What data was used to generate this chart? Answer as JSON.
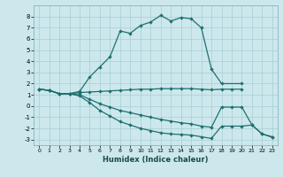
{
  "xlabel": "Humidex (Indice chaleur)",
  "bg_color": "#cce8ec",
  "grid_color": "#a8cdd4",
  "line_color": "#1e7070",
  "xlim": [
    -0.5,
    23.5
  ],
  "ylim": [
    -3.5,
    9.0
  ],
  "xticks": [
    0,
    1,
    2,
    3,
    4,
    5,
    6,
    7,
    8,
    9,
    10,
    11,
    12,
    13,
    14,
    15,
    16,
    17,
    18,
    19,
    20,
    21,
    22,
    23
  ],
  "yticks": [
    -3,
    -2,
    -1,
    0,
    1,
    2,
    3,
    4,
    5,
    6,
    7,
    8
  ],
  "line1_x": [
    0,
    1,
    2,
    3,
    4,
    5,
    6,
    7,
    8,
    9,
    10,
    11,
    12,
    13,
    14,
    15,
    16,
    17,
    18,
    20
  ],
  "line1_y": [
    1.5,
    1.4,
    1.1,
    1.1,
    1.3,
    2.6,
    3.5,
    4.4,
    6.7,
    6.5,
    7.2,
    7.5,
    8.1,
    7.6,
    7.9,
    7.8,
    7.0,
    3.3,
    2.0,
    2.0
  ],
  "line2_x": [
    0,
    1,
    2,
    3,
    4,
    5,
    6,
    7,
    8,
    9,
    10,
    11,
    12,
    13,
    14,
    15,
    16,
    17,
    18,
    19,
    20
  ],
  "line2_y": [
    1.5,
    1.4,
    1.1,
    1.1,
    1.2,
    1.25,
    1.3,
    1.35,
    1.4,
    1.45,
    1.5,
    1.5,
    1.55,
    1.55,
    1.55,
    1.55,
    1.5,
    1.45,
    1.5,
    1.5,
    1.5
  ],
  "line3_x": [
    0,
    1,
    2,
    3,
    4,
    5,
    6,
    7,
    8,
    9,
    10,
    11,
    12,
    13,
    14,
    15,
    16,
    17,
    18,
    19,
    20,
    21,
    22,
    23
  ],
  "line3_y": [
    1.5,
    1.4,
    1.1,
    1.1,
    1.0,
    0.6,
    0.2,
    -0.1,
    -0.4,
    -0.6,
    -0.8,
    -1.0,
    -1.2,
    -1.35,
    -1.5,
    -1.6,
    -1.8,
    -1.9,
    -0.1,
    -0.1,
    -0.1,
    -1.7,
    -2.5,
    -2.8
  ],
  "line4_x": [
    0,
    1,
    2,
    3,
    4,
    5,
    6,
    7,
    8,
    9,
    10,
    11,
    12,
    13,
    14,
    15,
    16,
    17,
    18,
    19,
    20,
    21,
    22,
    23
  ],
  "line4_y": [
    1.5,
    1.4,
    1.1,
    1.1,
    0.9,
    0.3,
    -0.4,
    -0.9,
    -1.4,
    -1.7,
    -2.0,
    -2.2,
    -2.4,
    -2.5,
    -2.55,
    -2.6,
    -2.75,
    -2.9,
    -1.8,
    -1.8,
    -1.8,
    -1.7,
    -2.5,
    -2.75
  ]
}
